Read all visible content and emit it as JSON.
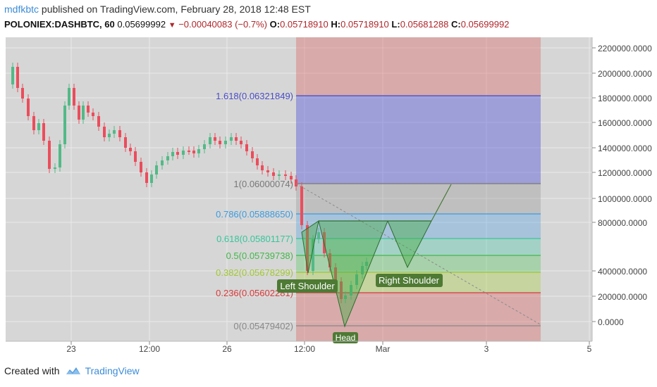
{
  "header": {
    "username": "mdfkbtc",
    "published_text": "published on TradingView.com, February 28, 2018 12:48 EST"
  },
  "quote": {
    "symbol": "POLONIEX:DASHBTC, 60",
    "last": "0.05699992",
    "change": "−0.00040083 (−0.7%)",
    "o_label": "O:",
    "o": "0.05718910",
    "h_label": "H:",
    "h": "0.05718910",
    "l_label": "L:",
    "l": "0.05681288",
    "c_label": "C:",
    "c": "0.05699992"
  },
  "footer": {
    "created_with": "Created with",
    "brand": "TradingView"
  },
  "chart_data": {
    "type": "candlestick",
    "right_axis_labels": [
      "2200000.0000",
      "2000000.0000",
      "1800000.0000",
      "1600000.0000",
      "1400000.0000",
      "1200000.0000",
      "1000000.0000",
      "800000.0000",
      "400000.0000",
      "200000.0000",
      "0.0000"
    ],
    "x_tick_labels": [
      "23",
      "12:00",
      "26",
      "12:00",
      "Mar",
      "3",
      "5"
    ],
    "fib_levels": [
      {
        "ratio": 1.618,
        "label": "1.618(0.06321849)",
        "color": "#4a4cc4"
      },
      {
        "ratio": 1,
        "label": "1(0.06000074)",
        "color": "#787878"
      },
      {
        "ratio": 0.786,
        "label": "0.786(0.05888650)",
        "color": "#3b9be0"
      },
      {
        "ratio": 0.618,
        "label": "0.618(0.05801177)",
        "color": "#36c69a"
      },
      {
        "ratio": 0.5,
        "label": "0.5(0.05739738)",
        "color": "#42b84a"
      },
      {
        "ratio": 0.382,
        "label": "0.382(0.05678299)",
        "color": "#a0c830"
      },
      {
        "ratio": 0.236,
        "label": "0.236(0.05602281)",
        "color": "#d83a3a"
      },
      {
        "ratio": 0,
        "label": "0(0.05479402)",
        "color": "#888888"
      }
    ],
    "annotations": [
      "Left Shoulder",
      "Head",
      "Right Shoulder"
    ],
    "pattern": "head-and-shoulders",
    "colors": {
      "up": "#53b987",
      "down": "#eb4d5c",
      "background": "#d6d6d6"
    }
  }
}
